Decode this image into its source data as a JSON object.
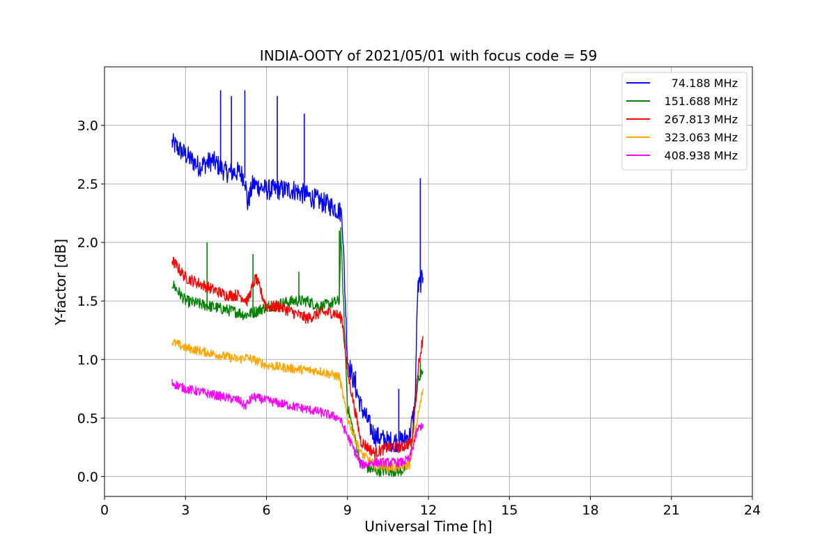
{
  "chart_data": {
    "type": "line",
    "title": "INDIA-OOTY of 2021/05/01 with focus code = 59",
    "xlabel": "Universal Time [h]",
    "ylabel": "Y-factor [dB]",
    "xlim": [
      0,
      24
    ],
    "ylim": [
      -0.17,
      3.5
    ],
    "xticks": [
      "0",
      "3",
      "6",
      "9",
      "12",
      "15",
      "18",
      "21",
      "24"
    ],
    "yticks": [
      "0.0",
      "0.5",
      "1.0",
      "1.5",
      "2.0",
      "2.5",
      "3.0"
    ],
    "grid": true,
    "legend_position": "top-right",
    "series": [
      {
        "name": "74.188 MHz",
        "color": "#0000ff",
        "x": [
          2.5,
          3,
          3.5,
          4,
          4.5,
          5,
          5.2,
          5.3,
          5.5,
          6,
          6.5,
          7,
          7.5,
          8,
          8.5,
          8.8,
          9,
          9.5,
          10,
          10.5,
          11,
          11.3,
          11.5,
          11.6,
          11.8
        ],
        "y": [
          2.85,
          2.75,
          2.65,
          2.7,
          2.6,
          2.6,
          2.55,
          2.33,
          2.5,
          2.45,
          2.45,
          2.45,
          2.4,
          2.35,
          2.3,
          2.25,
          1.0,
          0.6,
          0.35,
          0.3,
          0.3,
          0.35,
          0.6,
          1.6,
          1.7
        ],
        "spikes": [
          [
            4.3,
            3.3
          ],
          [
            4.7,
            3.25
          ],
          [
            5.2,
            3.3
          ],
          [
            6.4,
            3.25
          ],
          [
            7.4,
            3.1
          ],
          [
            11.7,
            2.55
          ],
          [
            9.3,
            0.9
          ],
          [
            10.9,
            0.75
          ]
        ]
      },
      {
        "name": "151.688 MHz",
        "color": "#008000",
        "x": [
          2.5,
          3,
          4,
          5,
          5.2,
          5.5,
          6,
          7,
          7.5,
          8,
          8.7,
          8.75,
          9,
          9.5,
          10,
          10.5,
          11,
          11.3,
          11.6,
          11.8
        ],
        "y": [
          1.65,
          1.5,
          1.45,
          1.4,
          1.38,
          1.4,
          1.45,
          1.5,
          1.5,
          1.45,
          1.5,
          2.1,
          0.6,
          0.1,
          0.05,
          0.05,
          0.05,
          0.1,
          0.8,
          0.9
        ],
        "spikes": [
          [
            3.8,
            2.0
          ],
          [
            5.5,
            1.9
          ],
          [
            7.2,
            1.75
          ],
          [
            8.7,
            2.1
          ],
          [
            11.7,
            0.98
          ]
        ]
      },
      {
        "name": "267.813 MHz",
        "color": "#ff0000",
        "x": [
          2.5,
          3,
          3.5,
          4,
          4.5,
          5,
          5.3,
          5.6,
          6,
          6.5,
          7,
          7.5,
          8,
          8.5,
          8.8,
          9,
          9.5,
          10,
          10.5,
          11,
          11.4,
          11.6,
          11.8
        ],
        "y": [
          1.85,
          1.7,
          1.65,
          1.6,
          1.55,
          1.55,
          1.5,
          1.7,
          1.45,
          1.45,
          1.4,
          1.35,
          1.4,
          1.4,
          1.35,
          0.9,
          0.3,
          0.2,
          0.25,
          0.25,
          0.3,
          0.9,
          1.2
        ]
      },
      {
        "name": "323.063 MHz",
        "color": "#ffa500",
        "x": [
          2.5,
          3,
          4,
          5,
          5.2,
          5.5,
          6,
          7,
          8,
          8.7,
          9,
          9.5,
          10,
          10.5,
          11,
          11.3,
          11.6,
          11.8
        ],
        "y": [
          1.15,
          1.1,
          1.05,
          1.0,
          1.02,
          1.0,
          0.95,
          0.92,
          0.9,
          0.85,
          0.5,
          0.2,
          0.1,
          0.08,
          0.08,
          0.1,
          0.5,
          0.75
        ]
      },
      {
        "name": "408.938 MHz",
        "color": "#ff00ff",
        "x": [
          2.5,
          3,
          4,
          5,
          5.2,
          5.5,
          6,
          7,
          8,
          8.7,
          9,
          9.5,
          10,
          10.5,
          11,
          11.3,
          11.6,
          11.8
        ],
        "y": [
          0.8,
          0.75,
          0.7,
          0.65,
          0.6,
          0.68,
          0.65,
          0.6,
          0.55,
          0.5,
          0.35,
          0.1,
          0.12,
          0.12,
          0.12,
          0.15,
          0.4,
          0.45
        ]
      }
    ]
  }
}
